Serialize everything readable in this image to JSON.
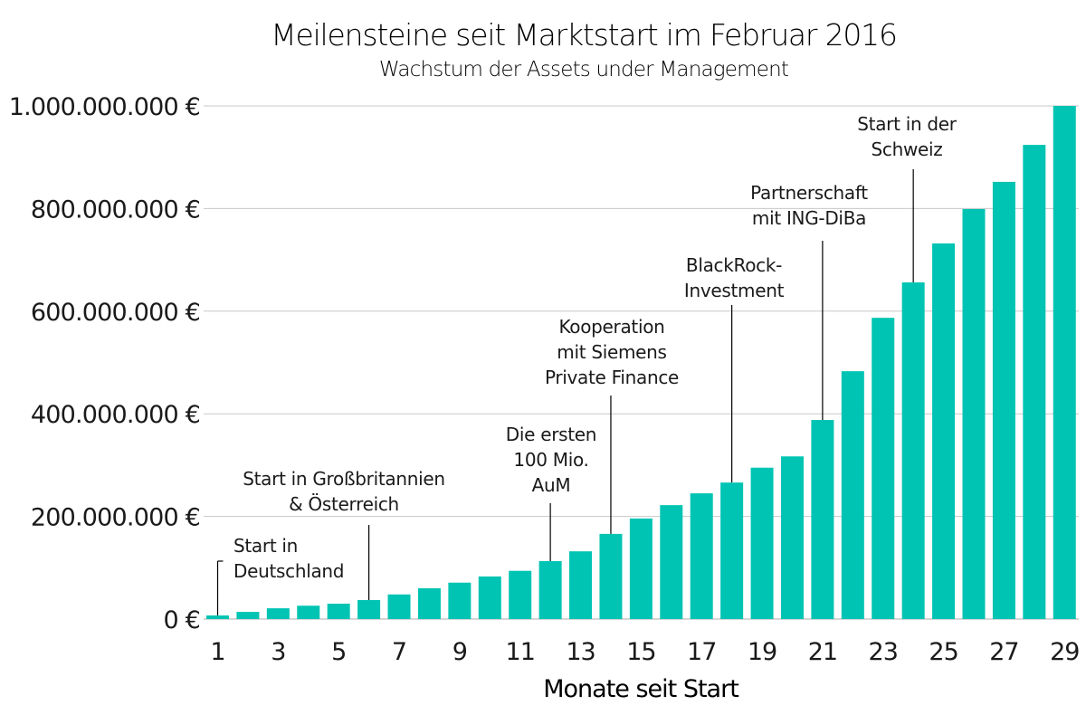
{
  "chart_data": {
    "type": "bar",
    "title": "Meilensteine seit Marktstart im Februar 2016",
    "subtitle": "Wachstum der Assets under Management",
    "xlabel": "Monate seit Start",
    "ylabel": "",
    "ylim": [
      0,
      1000000000
    ],
    "grid": true,
    "bar_color": "#00c4b3",
    "grid_color": "#c8c8c8",
    "categories": [
      1,
      2,
      3,
      4,
      5,
      6,
      7,
      8,
      9,
      10,
      11,
      12,
      13,
      14,
      15,
      16,
      17,
      18,
      19,
      20,
      21,
      22,
      23,
      24,
      25,
      26,
      27,
      28,
      29
    ],
    "values": [
      7000000,
      14000000,
      21000000,
      26000000,
      30000000,
      37000000,
      48000000,
      60000000,
      71000000,
      83000000,
      94000000,
      113000000,
      132000000,
      166000000,
      196000000,
      222000000,
      245000000,
      266000000,
      295000000,
      317000000,
      388000000,
      483000000,
      587000000,
      656000000,
      732000000,
      799000000,
      852000000,
      924000000,
      1000000000
    ],
    "x_tick_labels": [
      "1",
      "3",
      "5",
      "7",
      "9",
      "11",
      "13",
      "15",
      "17",
      "19",
      "21",
      "23",
      "25",
      "27",
      "29"
    ],
    "y_ticks": [
      0,
      200000000,
      400000000,
      600000000,
      800000000,
      1000000000
    ],
    "y_tick_labels": [
      "0 €",
      "200.000.000 €",
      "400.000.000 €",
      "600.000.000 €",
      "800.000.000 €",
      "1.000.000.000 €"
    ],
    "annotations": [
      {
        "month": 1,
        "lines": [
          "Start in",
          "Deutschland"
        ]
      },
      {
        "month": 6,
        "lines": [
          "Start in Großbritannien",
          "& Österreich"
        ]
      },
      {
        "month": 12,
        "lines": [
          "Die ersten",
          "100 Mio.",
          "AuM"
        ]
      },
      {
        "month": 14,
        "lines": [
          "Kooperation",
          "mit Siemens",
          "Private Finance"
        ]
      },
      {
        "month": 18,
        "lines": [
          "BlackRock-",
          "Investment"
        ]
      },
      {
        "month": 21,
        "lines": [
          "Partnerschaft",
          "mit ING-DiBa"
        ]
      },
      {
        "month": 24,
        "lines": [
          "Start in der",
          "Schweiz"
        ]
      }
    ]
  }
}
